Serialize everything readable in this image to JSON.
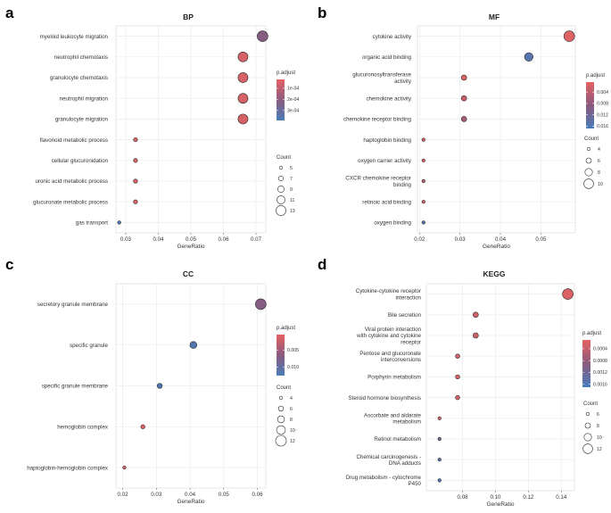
{
  "chart_data": [
    {
      "id": "a",
      "type": "scatter",
      "panel_label": "a",
      "title": "BP",
      "xlabel": "GeneRatio",
      "xlim": [
        0.027,
        0.073
      ],
      "xticks": [
        0.03,
        0.04,
        0.05,
        0.06,
        0.07
      ],
      "xtick_labels": [
        "0.03",
        "0.04",
        "0.05",
        "0.06",
        "0.07"
      ],
      "points": [
        {
          "term": [
            "myeloid leukocyte migration"
          ],
          "x": 0.072,
          "count": 14,
          "padj": 0.00022
        },
        {
          "term": [
            "neutrophil chemotaxis"
          ],
          "x": 0.066,
          "count": 13,
          "padj": 5e-05
        },
        {
          "term": [
            "granulocyte chemotaxis"
          ],
          "x": 0.066,
          "count": 13,
          "padj": 5e-05
        },
        {
          "term": [
            "neutrophil migration"
          ],
          "x": 0.066,
          "count": 13,
          "padj": 5e-05
        },
        {
          "term": [
            "granulocyte migration"
          ],
          "x": 0.066,
          "count": 13,
          "padj": 5e-05
        },
        {
          "term": [
            "flavonoid metabolic process"
          ],
          "x": 0.033,
          "count": 6,
          "padj": 5e-05
        },
        {
          "term": [
            "cellular glucuronidation"
          ],
          "x": 0.033,
          "count": 6,
          "padj": 5e-05
        },
        {
          "term": [
            "uronic acid metabolic process"
          ],
          "x": 0.033,
          "count": 6,
          "padj": 5e-05
        },
        {
          "term": [
            "glucuronate metabolic process"
          ],
          "x": 0.033,
          "count": 6,
          "padj": 5e-05
        },
        {
          "term": [
            "gas transport"
          ],
          "x": 0.028,
          "count": 5,
          "padj": 0.00038
        }
      ],
      "size_legend": {
        "title": "Count",
        "values": [
          5,
          7,
          9,
          11,
          13
        ]
      },
      "color_legend": {
        "title": "p.adjust",
        "min": 2e-05,
        "max": 0.00039,
        "ticks": [
          0.0001,
          0.0002,
          0.0003
        ],
        "tick_labels": [
          "1e-04",
          "2e-04",
          "3e-04"
        ]
      }
    },
    {
      "id": "b",
      "type": "scatter",
      "panel_label": "b",
      "title": "MF",
      "xlabel": "GeneRatio",
      "xlim": [
        0.0195,
        0.0585
      ],
      "xticks": [
        0.02,
        0.03,
        0.04,
        0.05
      ],
      "xtick_labels": [
        "0.02",
        "0.03",
        "0.04",
        "0.05"
      ],
      "points": [
        {
          "term": [
            "cytokine activity"
          ],
          "x": 0.057,
          "count": 11,
          "padj": 0.001
        },
        {
          "term": [
            "organic acid binding"
          ],
          "x": 0.047,
          "count": 9,
          "padj": 0.015
        },
        {
          "term": [
            "glucuronosyltransferase",
            "activity"
          ],
          "x": 0.031,
          "count": 6,
          "padj": 0.001
        },
        {
          "term": [
            "chemokine activity"
          ],
          "x": 0.031,
          "count": 6,
          "padj": 0.003
        },
        {
          "term": [
            "chemokine receptor binding"
          ],
          "x": 0.031,
          "count": 6,
          "padj": 0.006
        },
        {
          "term": [
            "haptoglobin binding"
          ],
          "x": 0.021,
          "count": 4,
          "padj": 0.002
        },
        {
          "term": [
            "oxygen carrier activity"
          ],
          "x": 0.021,
          "count": 4,
          "padj": 0.002
        },
        {
          "term": [
            "CXCR chemokine receptor",
            "binding"
          ],
          "x": 0.021,
          "count": 4,
          "padj": 0.004
        },
        {
          "term": [
            "retinoic acid binding"
          ],
          "x": 0.021,
          "count": 4,
          "padj": 0.002
        },
        {
          "term": [
            "oxygen binding"
          ],
          "x": 0.021,
          "count": 4,
          "padj": 0.015
        }
      ],
      "size_legend": {
        "title": "Count",
        "values": [
          4,
          6,
          8,
          10
        ]
      },
      "color_legend": {
        "title": "p.adjust",
        "min": 0.0005,
        "max": 0.0168,
        "ticks": [
          0.004,
          0.008,
          0.012,
          0.016
        ],
        "tick_labels": [
          "0.004",
          "0.008",
          "0.012",
          "0.016"
        ]
      }
    },
    {
      "id": "c",
      "type": "scatter",
      "panel_label": "c",
      "title": "CC",
      "xlabel": "GeneRatio",
      "xlim": [
        0.018,
        0.0625
      ],
      "xticks": [
        0.02,
        0.03,
        0.04,
        0.05,
        0.06
      ],
      "xtick_labels": [
        "0.02",
        "0.03",
        "0.04",
        "0.05",
        "0.06"
      ],
      "points": [
        {
          "term": [
            "secretory granule membrane"
          ],
          "x": 0.061,
          "count": 12,
          "padj": 0.007
        },
        {
          "term": [
            "specific granule"
          ],
          "x": 0.041,
          "count": 8,
          "padj": 0.0115
        },
        {
          "term": [
            "specific granule membrane"
          ],
          "x": 0.031,
          "count": 6,
          "padj": 0.012
        },
        {
          "term": [
            "hemoglobin complex"
          ],
          "x": 0.026,
          "count": 5,
          "padj": 0.001
        },
        {
          "term": [
            "haptoglobin-hemoglobin complex"
          ],
          "x": 0.0205,
          "count": 4,
          "padj": 0.001
        }
      ],
      "size_legend": {
        "title": "Count",
        "values": [
          4,
          6,
          8,
          10,
          12
        ]
      },
      "color_legend": {
        "title": "p.adjust",
        "min": 0.0005,
        "max": 0.0125,
        "ticks": [
          0.005,
          0.01
        ],
        "tick_labels": [
          "0.005",
          "0.010"
        ]
      }
    },
    {
      "id": "d",
      "type": "scatter",
      "panel_label": "d",
      "title": "KEGG",
      "xlabel": "GeneRatio",
      "xlim": [
        0.058,
        0.148
      ],
      "xticks": [
        0.08,
        0.1,
        0.12,
        0.14
      ],
      "xtick_labels": [
        "0.08",
        "0.10",
        "0.12",
        "0.14"
      ],
      "points": [
        {
          "term": [
            "Cytokine-cytokine receptor",
            "interaction"
          ],
          "x": 0.144,
          "count": 13,
          "padj": 0.0002
        },
        {
          "term": [
            "Bile secretion"
          ],
          "x": 0.088,
          "count": 8,
          "padj": 0.0003
        },
        {
          "term": [
            "Viral protein interaction",
            "with cytokine and cytokine",
            "receptor"
          ],
          "x": 0.088,
          "count": 8,
          "padj": 0.0003
        },
        {
          "term": [
            "Pentose and glucuronate",
            "interconversions"
          ],
          "x": 0.077,
          "count": 7,
          "padj": 0.0002
        },
        {
          "term": [
            "Porphyrin metabolism"
          ],
          "x": 0.077,
          "count": 7,
          "padj": 0.0002
        },
        {
          "term": [
            "Steroid hormone biosynthesis"
          ],
          "x": 0.077,
          "count": 7,
          "padj": 0.0002
        },
        {
          "term": [
            "Ascorbate and aldarate",
            "metabolism"
          ],
          "x": 0.066,
          "count": 6,
          "padj": 0.0003
        },
        {
          "term": [
            "Retinol metabolism"
          ],
          "x": 0.066,
          "count": 6,
          "padj": 0.0012
        },
        {
          "term": [
            "Chemical carcinogenesis -",
            "DNA adducts"
          ],
          "x": 0.066,
          "count": 6,
          "padj": 0.0015
        },
        {
          "term": [
            "Drug metabolism - cytochrome",
            "P450"
          ],
          "x": 0.066,
          "count": 6,
          "padj": 0.0016
        }
      ],
      "size_legend": {
        "title": "Count",
        "values": [
          6,
          8,
          10,
          12
        ]
      },
      "color_legend": {
        "title": "p.adjust",
        "min": 0.0001,
        "max": 0.0017,
        "ticks": [
          0.0004,
          0.0008,
          0.0012,
          0.0016
        ],
        "tick_labels": [
          "0.0004",
          "0.0008",
          "0.0012",
          "0.0016"
        ]
      }
    }
  ]
}
